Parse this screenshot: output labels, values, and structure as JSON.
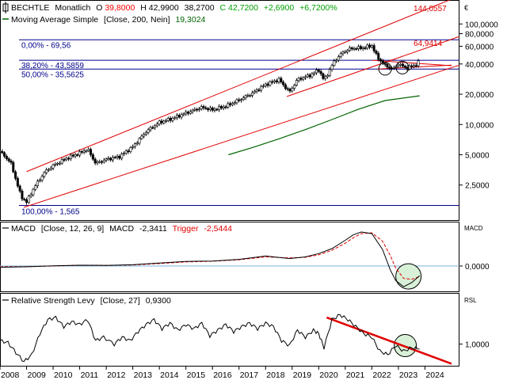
{
  "header": {
    "symbol": "BECHTLE",
    "period": "Monatlich",
    "open_label": "O",
    "open": "39,8000",
    "high_label": "H",
    "high": "42,9900",
    "low": "38,2700",
    "close_label": "C",
    "close": "42,7200",
    "change": "+2,6900",
    "change_pct": "+6,7200%",
    "ma_label": "Moving Average Simple",
    "ma_params": "[Close, 200, Nein]",
    "ma_value": "19,3024",
    "currency": "€"
  },
  "colors": {
    "up": "#00a000",
    "down": "#ff0000",
    "candle": "#000000",
    "ma": "#006400",
    "channel": "#e00000",
    "fib": "#00008b",
    "macd_signal": "#e00000",
    "highlight": "#d8f0d8"
  },
  "chart_data": [
    {
      "type": "candlestick",
      "title": "BECHTLE Monatlich",
      "y_scale": "log",
      "y_ticks": [
        "100,0000",
        "80,0000",
        "60,0000",
        "40,0000",
        "20,0000",
        "10,0000",
        "5,0000",
        "2,5000"
      ],
      "y_tick_values": [
        100,
        80,
        60,
        40,
        20,
        10,
        5,
        2.5
      ],
      "ylim": [
        1.1,
        170
      ],
      "x_ticks": [
        "2008",
        "2009",
        "2010",
        "2011",
        "2012",
        "2013",
        "2014",
        "2015",
        "2016",
        "2017",
        "2018",
        "2019",
        "2020",
        "2021",
        "2022",
        "2023",
        "2024"
      ],
      "xlim": [
        2008.0,
        2025.3
      ],
      "price_path": [
        [
          2008.0,
          5.4
        ],
        [
          2008.4,
          4.2
        ],
        [
          2008.8,
          1.9
        ],
        [
          2009.0,
          1.7
        ],
        [
          2009.3,
          2.4
        ],
        [
          2009.7,
          3.4
        ],
        [
          2010.0,
          3.9
        ],
        [
          2010.5,
          4.6
        ],
        [
          2011.0,
          5.2
        ],
        [
          2011.3,
          5.7
        ],
        [
          2011.6,
          4.1
        ],
        [
          2012.0,
          4.5
        ],
        [
          2012.5,
          4.8
        ],
        [
          2013.0,
          6.0
        ],
        [
          2013.5,
          8.5
        ],
        [
          2014.0,
          10.5
        ],
        [
          2014.5,
          11.5
        ],
        [
          2015.0,
          13.0
        ],
        [
          2015.6,
          14.8
        ],
        [
          2016.0,
          14.0
        ],
        [
          2016.5,
          15.2
        ],
        [
          2017.0,
          17.5
        ],
        [
          2017.5,
          20.5
        ],
        [
          2018.0,
          25.0
        ],
        [
          2018.5,
          28.0
        ],
        [
          2018.9,
          21.0
        ],
        [
          2019.2,
          28.0
        ],
        [
          2019.7,
          31.0
        ],
        [
          2020.0,
          35.0
        ],
        [
          2020.2,
          27.5
        ],
        [
          2020.6,
          43.0
        ],
        [
          2020.9,
          52.0
        ],
        [
          2021.2,
          57.0
        ],
        [
          2021.7,
          58.0
        ],
        [
          2022.0,
          61.0
        ],
        [
          2022.2,
          47.0
        ],
        [
          2022.5,
          38.5
        ],
        [
          2022.8,
          35.6
        ],
        [
          2023.0,
          40.0
        ],
        [
          2023.3,
          36.5
        ],
        [
          2023.6,
          38.5
        ],
        [
          2023.8,
          42.7
        ]
      ],
      "ma_200": [
        [
          2016.6,
          5.0
        ],
        [
          2017.5,
          5.9
        ],
        [
          2018.5,
          7.2
        ],
        [
          2019.5,
          8.9
        ],
        [
          2020.5,
          11.2
        ],
        [
          2021.5,
          14.2
        ],
        [
          2022.5,
          17.3
        ],
        [
          2023.8,
          19.3
        ]
      ],
      "channel_lower": [
        [
          2008.9,
          1.5
        ],
        [
          2025.3,
          39.0
        ]
      ],
      "channel_upper": [
        [
          2009.0,
          3.4
        ],
        [
          2025.3,
          190
        ]
      ],
      "channel_mid": [
        [
          2018.8,
          19.0
        ],
        [
          2025.3,
          75
        ]
      ],
      "trend_lines": [
        [
          [
            2022.0,
            43.59
          ],
          [
            2025.0,
            38.4
          ]
        ],
        [
          [
            2022.2,
            35.56
          ],
          [
            2025.0,
            39.0
          ]
        ]
      ],
      "fib_levels": [
        {
          "label": "0,00% - 69,56",
          "value": 69.56
        },
        {
          "label": "38,20% - 43,5859",
          "value": 43.5859
        },
        {
          "label": "50,00% - 35,5625",
          "value": 35.5625
        },
        {
          "label": "100,00% - 1,565",
          "value": 1.565
        }
      ],
      "annotations": [
        {
          "label": "144,0557",
          "value": 144.0557
        },
        {
          "label": "64,9414",
          "value": 64.9414
        }
      ],
      "highlight_circles": [
        [
          2022.5,
          35.8
        ],
        [
          2023.15,
          36.8
        ]
      ]
    },
    {
      "type": "line",
      "title": "MACD",
      "label": "MACD",
      "params": "[Close, 12, 26, 9]",
      "value_label": "MACD",
      "value": "-2,3411",
      "trigger_label": "Trigger",
      "trigger_value": "-2,5444",
      "axis_label": "MACD",
      "y_ticks": [
        "0,0000"
      ],
      "y_tick_values": [
        0
      ],
      "ylim": [
        -6.3,
        10.5
      ],
      "macd": [
        [
          2008.0,
          -0.3
        ],
        [
          2009.0,
          -0.2
        ],
        [
          2010.0,
          0.05
        ],
        [
          2011.0,
          0.2
        ],
        [
          2012.0,
          0.15
        ],
        [
          2013.0,
          0.3
        ],
        [
          2014.0,
          0.7
        ],
        [
          2015.0,
          1.1
        ],
        [
          2016.0,
          1.2
        ],
        [
          2017.0,
          1.6
        ],
        [
          2018.0,
          2.4
        ],
        [
          2018.9,
          1.8
        ],
        [
          2019.5,
          2.2
        ],
        [
          2020.0,
          3.0
        ],
        [
          2020.5,
          4.2
        ],
        [
          2021.0,
          6.2
        ],
        [
          2021.3,
          7.5
        ],
        [
          2021.6,
          8.2
        ],
        [
          2022.0,
          7.8
        ],
        [
          2022.4,
          4.0
        ],
        [
          2022.7,
          -1.0
        ],
        [
          2022.9,
          -3.5
        ],
        [
          2023.2,
          -5.0
        ],
        [
          2023.5,
          -4.0
        ],
        [
          2023.8,
          -2.34
        ]
      ],
      "trigger": [
        [
          2008.0,
          -0.2
        ],
        [
          2009.0,
          -0.15
        ],
        [
          2010.0,
          0.0
        ],
        [
          2011.0,
          0.18
        ],
        [
          2012.0,
          0.15
        ],
        [
          2013.0,
          0.25
        ],
        [
          2014.0,
          0.6
        ],
        [
          2015.0,
          1.0
        ],
        [
          2016.0,
          1.15
        ],
        [
          2017.0,
          1.5
        ],
        [
          2018.0,
          2.2
        ],
        [
          2018.9,
          1.95
        ],
        [
          2019.5,
          2.1
        ],
        [
          2020.0,
          2.7
        ],
        [
          2020.5,
          3.8
        ],
        [
          2021.0,
          5.5
        ],
        [
          2021.3,
          6.8
        ],
        [
          2021.6,
          7.8
        ],
        [
          2022.0,
          8.0
        ],
        [
          2022.4,
          6.0
        ],
        [
          2022.7,
          2.5
        ],
        [
          2022.9,
          -0.5
        ],
        [
          2023.2,
          -3.0
        ],
        [
          2023.5,
          -3.2
        ],
        [
          2023.8,
          -2.54
        ]
      ],
      "highlight_circle": [
        2023.2,
        -2.5
      ]
    },
    {
      "type": "line",
      "title": "Relative Strength Levy",
      "label": "Relative Strength Levy",
      "params": "[Close, 27]",
      "value": "0,9300",
      "axis_label": "RSL",
      "y_ticks": [
        "1,0000"
      ],
      "y_tick_values": [
        1.0
      ],
      "ylim": [
        0.68,
        1.72
      ],
      "rsl": [
        [
          2008.0,
          1.05
        ],
        [
          2008.3,
          1.02
        ],
        [
          2008.6,
          0.88
        ],
        [
          2008.9,
          0.75
        ],
        [
          2009.2,
          0.85
        ],
        [
          2009.5,
          1.15
        ],
        [
          2009.8,
          1.35
        ],
        [
          2010.1,
          1.38
        ],
        [
          2010.4,
          1.25
        ],
        [
          2010.7,
          1.32
        ],
        [
          2011.0,
          1.28
        ],
        [
          2011.3,
          1.35
        ],
        [
          2011.6,
          1.05
        ],
        [
          2011.9,
          1.1
        ],
        [
          2012.3,
          1.0
        ],
        [
          2012.6,
          1.1
        ],
        [
          2012.9,
          1.05
        ],
        [
          2013.2,
          1.18
        ],
        [
          2013.5,
          1.28
        ],
        [
          2013.8,
          1.35
        ],
        [
          2014.1,
          1.22
        ],
        [
          2014.4,
          1.3
        ],
        [
          2014.7,
          1.2
        ],
        [
          2015.0,
          1.28
        ],
        [
          2015.3,
          1.22
        ],
        [
          2015.6,
          1.3
        ],
        [
          2015.9,
          1.12
        ],
        [
          2016.2,
          1.2
        ],
        [
          2016.5,
          1.28
        ],
        [
          2016.8,
          1.18
        ],
        [
          2017.1,
          1.25
        ],
        [
          2017.4,
          1.3
        ],
        [
          2017.7,
          1.22
        ],
        [
          2018.0,
          1.3
        ],
        [
          2018.3,
          1.25
        ],
        [
          2018.6,
          1.05
        ],
        [
          2018.9,
          0.98
        ],
        [
          2019.2,
          1.2
        ],
        [
          2019.5,
          1.1
        ],
        [
          2019.8,
          1.2
        ],
        [
          2020.0,
          1.15
        ],
        [
          2020.2,
          0.95
        ],
        [
          2020.5,
          1.35
        ],
        [
          2020.8,
          1.42
        ],
        [
          2021.1,
          1.35
        ],
        [
          2021.4,
          1.25
        ],
        [
          2021.7,
          1.15
        ],
        [
          2022.0,
          1.1
        ],
        [
          2022.3,
          0.9
        ],
        [
          2022.6,
          0.85
        ],
        [
          2022.9,
          0.98
        ],
        [
          2023.2,
          0.9
        ],
        [
          2023.5,
          0.95
        ],
        [
          2023.8,
          0.93
        ]
      ],
      "trend_line": [
        [
          2020.3,
          1.38
        ],
        [
          2025.0,
          0.72
        ]
      ],
      "highlight_circle": [
        2023.2,
        0.98
      ]
    }
  ]
}
